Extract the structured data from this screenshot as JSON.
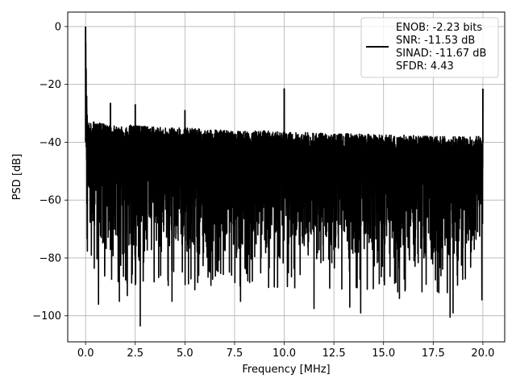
{
  "chart_data": {
    "type": "line",
    "title": "",
    "xlabel": "Frequency [MHz]",
    "ylabel": "PSD [dB]",
    "xlim": [
      -0.9,
      21.1
    ],
    "ylim": [
      -109,
      5
    ],
    "xticks": [
      0.0,
      2.5,
      5.0,
      7.5,
      10.0,
      12.5,
      15.0,
      17.5,
      20.0
    ],
    "xtick_labels": [
      "0.0",
      "2.5",
      "5.0",
      "7.5",
      "10.0",
      "12.5",
      "15.0",
      "17.5",
      "20.0"
    ],
    "yticks": [
      0,
      -20,
      -40,
      -60,
      -80,
      -100
    ],
    "ytick_labels": [
      "0",
      "−20",
      "−40",
      "−60",
      "−80",
      "−100"
    ],
    "grid": true,
    "legend_position": "upper-right",
    "legend_entries": [
      "ENOB: -2.23 bits",
      "SNR: -11.53 dB",
      "SINAD: -11.67 dB",
      "SFDR: 4.43"
    ],
    "series": [
      {
        "color": "#000000",
        "x": [
          0.0,
          0.05,
          0.1,
          0.2,
          0.4,
          0.7,
          1.0,
          1.25,
          1.5,
          2.0,
          2.5,
          3.0,
          4.0,
          5.0,
          6.0,
          7.5,
          9.0,
          10.0,
          11.0,
          12.5,
          14.0,
          15.0,
          16.5,
          17.5,
          18.5,
          19.5,
          20.0
        ],
        "envelope_upper": [
          0,
          -24,
          -32,
          -33,
          -33,
          -33,
          -34,
          -34,
          -34,
          -34,
          -34,
          -34.5,
          -35,
          -35,
          -35.5,
          -36,
          -36,
          -36.5,
          -36.5,
          -37,
          -37,
          -37.5,
          -37.5,
          -38,
          -38,
          -38,
          -38
        ],
        "envelope_lower": [
          -69,
          -75,
          -76,
          -78,
          -80,
          -80,
          -81,
          -82,
          -82,
          -83,
          -84,
          -84,
          -84,
          -84,
          -84,
          -84,
          -85,
          -85,
          -85,
          -85,
          -85,
          -86,
          -86,
          -86,
          -86,
          -86,
          -72
        ],
        "spurs": [
          {
            "x": 0.0,
            "y": 0
          },
          {
            "x": 0.05,
            "y": -24
          },
          {
            "x": 1.25,
            "y": -26.5
          },
          {
            "x": 2.5,
            "y": -27
          },
          {
            "x": 5.0,
            "y": -29
          },
          {
            "x": 10.0,
            "y": -21.5
          },
          {
            "x": 20.0,
            "y": -21.5
          }
        ],
        "dips": [
          {
            "x": 0.65,
            "y": -96
          },
          {
            "x": 1.7,
            "y": -95
          },
          {
            "x": 2.1,
            "y": -93
          },
          {
            "x": 2.75,
            "y": -103.5
          },
          {
            "x": 2.9,
            "y": -88
          },
          {
            "x": 4.35,
            "y": -95
          },
          {
            "x": 5.5,
            "y": -91
          },
          {
            "x": 7.8,
            "y": -95
          },
          {
            "x": 9.5,
            "y": -90
          },
          {
            "x": 11.5,
            "y": -97.5
          },
          {
            "x": 13.3,
            "y": -97
          },
          {
            "x": 13.85,
            "y": -99
          },
          {
            "x": 15.8,
            "y": -94
          },
          {
            "x": 18.35,
            "y": -100.5
          },
          {
            "x": 18.5,
            "y": -99
          },
          {
            "x": 19.95,
            "y": -94.5
          }
        ]
      }
    ]
  }
}
